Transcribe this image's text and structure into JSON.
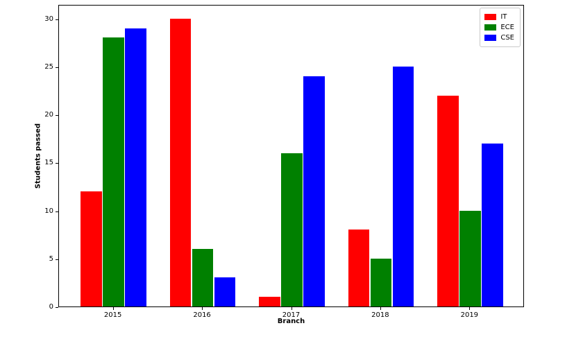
{
  "chart_data": {
    "type": "bar",
    "title": "",
    "xlabel": "Branch",
    "ylabel": "Students passed",
    "categories": [
      "2015",
      "2016",
      "2017",
      "2018",
      "2019"
    ],
    "series": [
      {
        "name": "IT",
        "color": "#ff0000",
        "values": [
          12,
          30,
          1,
          8,
          22
        ]
      },
      {
        "name": "ECE",
        "color": "#008000",
        "values": [
          28,
          6,
          16,
          5,
          10
        ]
      },
      {
        "name": "CSE",
        "color": "#0000ff",
        "values": [
          29,
          3,
          24,
          25,
          17
        ]
      }
    ],
    "yticks": [
      0,
      5,
      10,
      15,
      20,
      25,
      30
    ],
    "ylim": [
      0,
      31.5
    ],
    "grid": false,
    "legend_position": "upper right",
    "background_color": "#ffffff",
    "axis_color": "#000000"
  }
}
